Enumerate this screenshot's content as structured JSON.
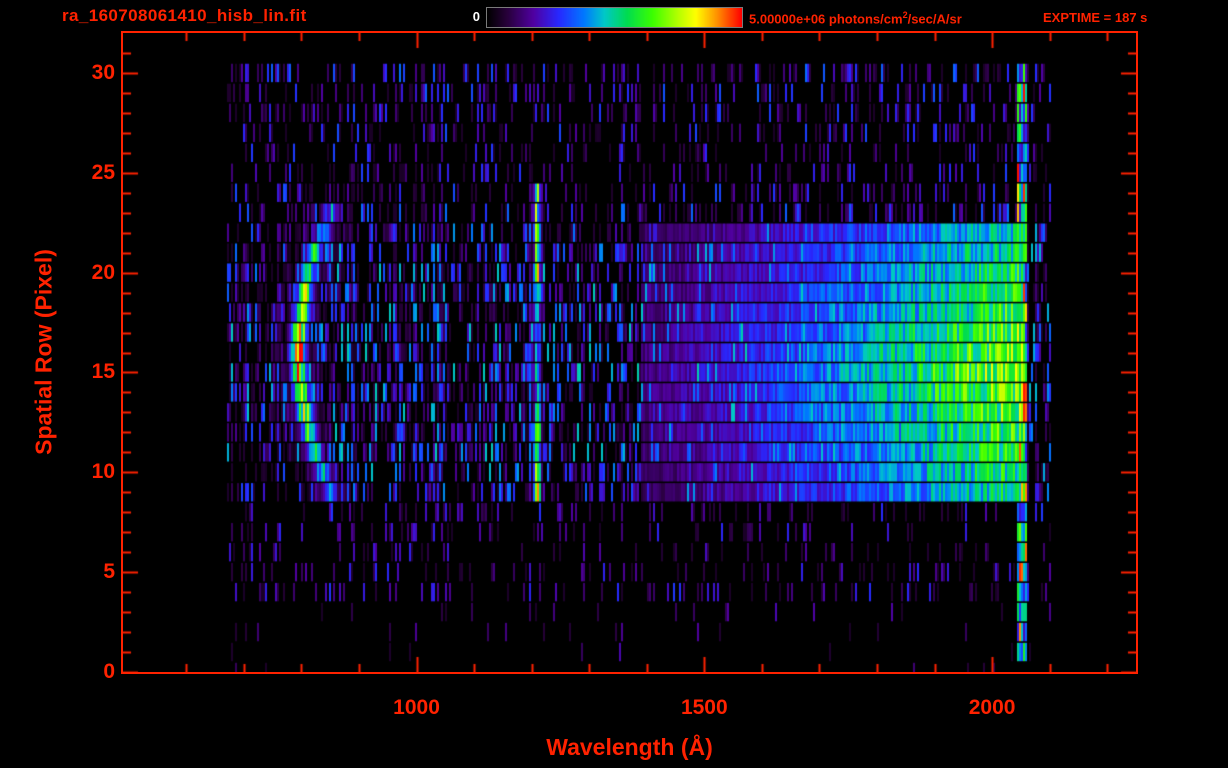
{
  "header": {
    "title": "ra_160708061410_hisb_lin.fit",
    "colorbar_min": "0",
    "colorbar_max_value": "5.00000e+06",
    "colorbar_units_pre": " photons/cm",
    "colorbar_units_sup": "2",
    "colorbar_units_post": "/sec/A/sr",
    "exptime": "EXPTIME = 187 s"
  },
  "colors": {
    "background": "#000000",
    "axis": "#ff2200",
    "colorbar_min_text": "#ffffff"
  },
  "chart_data": {
    "type": "heatmap",
    "title": "ra_160708061410_hisb_lin.fit",
    "xlabel": "Wavelength (Å)",
    "ylabel": "Spatial Row (Pixel)",
    "xlim": [
      490,
      2250
    ],
    "ylim": [
      0,
      32
    ],
    "xticks": [
      1000,
      1500,
      2000
    ],
    "yticks": [
      0,
      5,
      10,
      15,
      20,
      25,
      30
    ],
    "x_minor_tick_step": 100,
    "y_minor_tick_step": 1,
    "grid": false,
    "colorbar": {
      "min": 0,
      "max": 5000000,
      "units": "photons/cm^2/sec/A/sr",
      "scale": "linear",
      "position": "top"
    },
    "exposure_time_s": 187,
    "colormap_stops": [
      [
        0,
        "#000000"
      ],
      [
        0.08,
        "#28003c"
      ],
      [
        0.18,
        "#5000a0"
      ],
      [
        0.28,
        "#2828ff"
      ],
      [
        0.38,
        "#0078ff"
      ],
      [
        0.46,
        "#00c8c8"
      ],
      [
        0.55,
        "#00dc50"
      ],
      [
        0.65,
        "#3cff00"
      ],
      [
        0.75,
        "#b4ff00"
      ],
      [
        0.82,
        "#ffff00"
      ],
      [
        0.9,
        "#ff9600"
      ],
      [
        1,
        "#ff0000"
      ]
    ],
    "row_density": [
      0.03,
      0.06,
      0.05,
      0.1,
      0.38,
      0.3,
      0.26,
      0.3,
      0.4,
      0.78,
      0.88,
      0.92,
      0.92,
      0.95,
      0.95,
      0.95,
      0.95,
      0.95,
      0.92,
      0.92,
      0.9,
      0.88,
      0.82,
      0.62,
      0.5,
      0.46,
      0.42,
      0.46,
      0.44,
      0.55,
      0.6
    ],
    "features": [
      {
        "type": "background_noise",
        "name": "sparse-detector-noise",
        "wavelength": [
          672,
          2100
        ],
        "rows": [
          0,
          30
        ],
        "value_max": 0.4
      },
      {
        "type": "emission_arc",
        "name": "bright-crescent",
        "wavelength_vertex": 795,
        "row_vertex": 16,
        "curvature": 1.15,
        "rows": [
          9,
          23
        ],
        "width_A": 18,
        "peak_value": 0.97
      },
      {
        "type": "emission_line",
        "name": "Lyman-alpha-line",
        "wavelength": 1210,
        "width_A": 9,
        "rows": [
          9,
          24
        ],
        "value": 0.6
      },
      {
        "type": "continuum",
        "name": "long-wavelength-continuum",
        "rows": [
          9,
          22
        ],
        "wavelength": [
          1390,
          2058
        ],
        "value_start": 0.12,
        "value_end": 0.6
      },
      {
        "type": "edge_column",
        "name": "bright-edge-column",
        "wavelength": [
          2042,
          2062
        ],
        "rows": [
          1,
          30
        ],
        "value": 0.55
      }
    ]
  }
}
